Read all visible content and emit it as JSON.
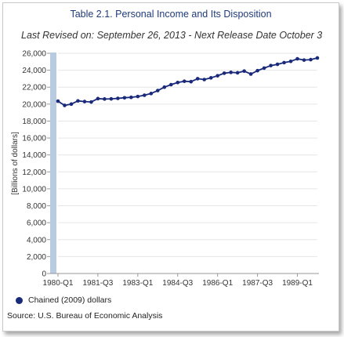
{
  "chart_data": {
    "type": "line",
    "title": "Table 2.1. Personal Income and Its Disposition",
    "subtitle": "Last Revised on: September 26, 2013 - Next Release Date October 3",
    "ylabel": "[Billions of dollars]",
    "xlabel": "",
    "ylim": [
      0,
      26000
    ],
    "yticks": [
      "0",
      "2,000",
      "4,000",
      "6,000",
      "8,000",
      "10,000",
      "12,000",
      "14,000",
      "16,000",
      "18,000",
      "20,000",
      "22,000",
      "24,000",
      "26,000"
    ],
    "ytick_values": [
      0,
      2000,
      4000,
      6000,
      8000,
      10000,
      12000,
      14000,
      16000,
      18000,
      20000,
      22000,
      24000,
      26000
    ],
    "x_tick_labels": [
      "1980-Q1",
      "1981-Q3",
      "1983-Q1",
      "1984-Q3",
      "1986-Q1",
      "1987-Q3",
      "1989-Q1"
    ],
    "x_tick_index": [
      0,
      6,
      12,
      18,
      24,
      30,
      36
    ],
    "grid": true,
    "legend_position": "bottom-left",
    "series": [
      {
        "name": "Chained (2009) dollars",
        "color": "#1a2a7a",
        "values": [
          20350,
          19850,
          20000,
          20380,
          20300,
          20250,
          20650,
          20600,
          20620,
          20680,
          20750,
          20800,
          20900,
          21050,
          21250,
          21600,
          22000,
          22300,
          22550,
          22700,
          22650,
          23000,
          22900,
          23100,
          23350,
          23650,
          23750,
          23700,
          23900,
          23550,
          23950,
          24250,
          24550,
          24700,
          24900,
          25050,
          25350,
          25200,
          25250,
          25450
        ]
      }
    ]
  },
  "source": "Source: U.S. Bureau of Economic Analysis"
}
